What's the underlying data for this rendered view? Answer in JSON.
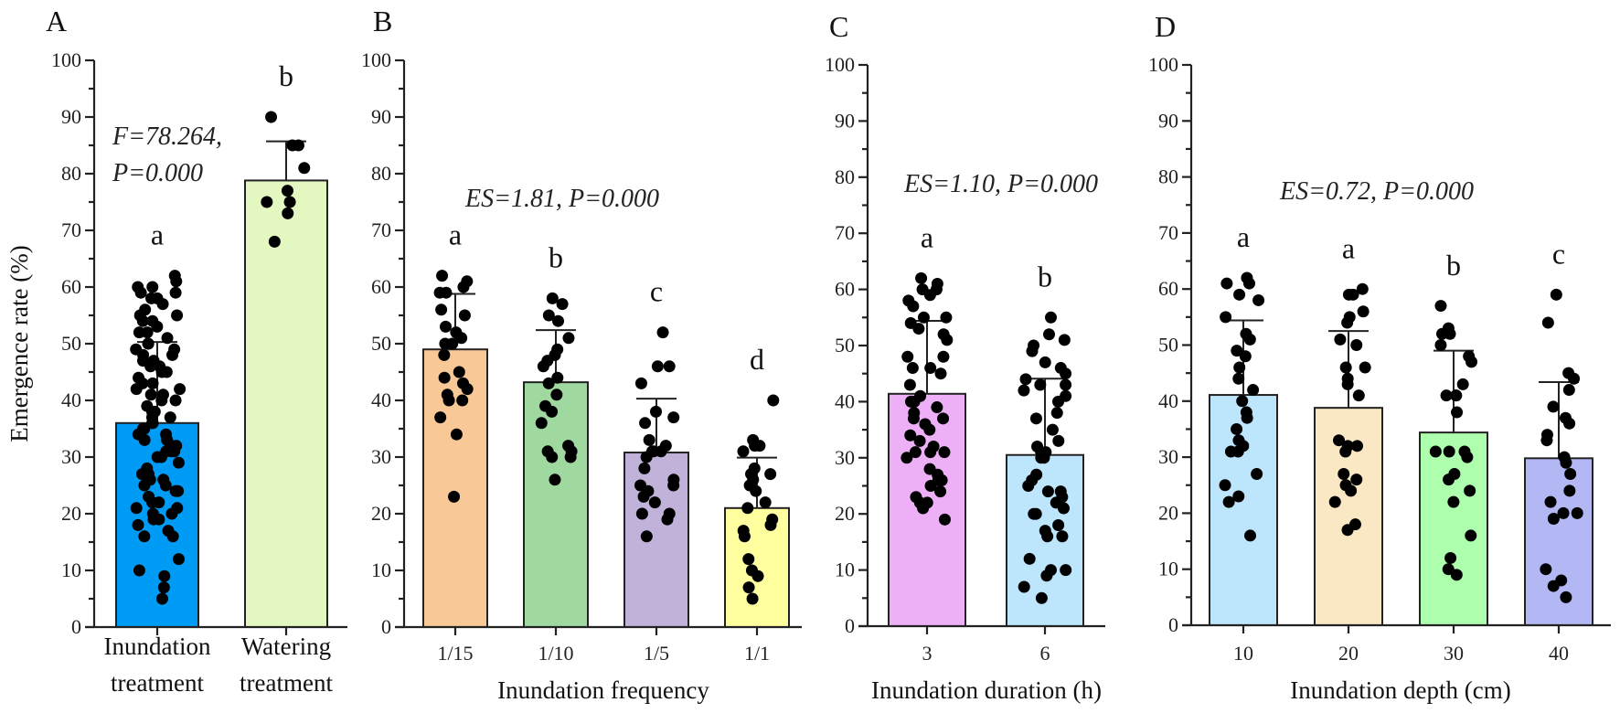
{
  "chart_data": [
    {
      "type": "bar",
      "panel": "A",
      "ylabel": "Emergence rate (%)",
      "xlabel": "",
      "ylim": [
        0,
        100
      ],
      "yticks": [
        "0",
        "10",
        "20",
        "30",
        "40",
        "50",
        "60",
        "70",
        "80",
        "90",
        "100"
      ],
      "stat_lines": [
        "F=78.264,",
        "P=0.000"
      ],
      "categories": [
        [
          "Inundation",
          "treatment"
        ],
        [
          "Watering",
          "treatment"
        ]
      ],
      "values": [
        36.0,
        78.8
      ],
      "error_upper": [
        50.3,
        85.7
      ],
      "letters": [
        "a",
        "b"
      ],
      "colors": [
        "#009BF5",
        "#E2F8C0"
      ],
      "points": [
        [
          62,
          61,
          60,
          60,
          59,
          59,
          58,
          58,
          57,
          56,
          55,
          55,
          54,
          54,
          53,
          52,
          52,
          51,
          50,
          50,
          49,
          49,
          48,
          48,
          47,
          47,
          46,
          46,
          45,
          45,
          44,
          43,
          43,
          42,
          42,
          41,
          41,
          40,
          40,
          39,
          38,
          38,
          37,
          37,
          36,
          36,
          35,
          35,
          34,
          34,
          33,
          33,
          32,
          32,
          31,
          31,
          31,
          30,
          30,
          29,
          28,
          27,
          27,
          26,
          26,
          25,
          25,
          24,
          24,
          23,
          22,
          22,
          21,
          21,
          20,
          20,
          19,
          19,
          18,
          17,
          16,
          16,
          12,
          10,
          9,
          7,
          5
        ],
        [
          90,
          85,
          85,
          81,
          77,
          75,
          75,
          73,
          68
        ]
      ]
    },
    {
      "type": "bar",
      "panel": "B",
      "xlabel": "Inundation frequency",
      "ylim": [
        0,
        100
      ],
      "yticks": [
        "0",
        "10",
        "20",
        "30",
        "40",
        "50",
        "60",
        "70",
        "80",
        "90",
        "100"
      ],
      "stat_lines": [
        "ES=1.81, P=0.000"
      ],
      "categories": [
        "1/15",
        "1/10",
        "1/5",
        "1/1"
      ],
      "values": [
        49.0,
        43.2,
        30.8,
        21.0
      ],
      "error_upper": [
        58.8,
        52.4,
        40.3,
        29.9
      ],
      "letters": [
        "a",
        "b",
        "c",
        "d"
      ],
      "colors": [
        "#F9C897",
        "#A0D9A0",
        "#C1B2D9",
        "#FFFFA0"
      ],
      "points": [
        [
          62,
          61,
          60,
          59,
          59,
          56,
          55,
          53,
          52,
          51,
          50,
          50,
          48,
          45,
          44,
          43,
          42,
          41,
          40,
          40,
          37,
          34,
          23
        ],
        [
          58,
          57,
          55,
          54,
          51,
          49,
          48,
          47,
          46,
          44,
          43,
          41,
          39,
          38,
          36,
          32,
          31,
          31,
          30,
          30,
          26
        ],
        [
          52,
          46,
          46,
          43,
          38,
          37,
          36,
          33,
          32,
          31,
          31,
          31,
          30,
          28,
          26,
          25,
          25,
          24,
          23,
          22,
          20,
          20,
          19,
          16
        ],
        [
          40,
          33,
          32,
          32,
          31,
          28,
          27,
          27,
          26,
          25,
          24,
          22,
          21,
          19,
          18,
          17,
          16,
          12,
          10,
          9,
          7,
          5
        ]
      ]
    },
    {
      "type": "bar",
      "panel": "C",
      "xlabel": "Inundation duration (h)",
      "ylim": [
        0,
        100
      ],
      "yticks": [
        "0",
        "10",
        "20",
        "30",
        "40",
        "50",
        "60",
        "70",
        "80",
        "90",
        "100"
      ],
      "stat_lines": [
        "ES=1.10, P=0.000"
      ],
      "categories": [
        "3",
        "6"
      ],
      "values": [
        41.4,
        30.5
      ],
      "error_upper": [
        54.4,
        44.1
      ],
      "letters": [
        "a",
        "b"
      ],
      "colors": [
        "#EDB0F6",
        "#BDE5FC"
      ],
      "points": [
        [
          62,
          61,
          60,
          60,
          59,
          58,
          57,
          55,
          55,
          54,
          53,
          52,
          51,
          48,
          48,
          46,
          46,
          45,
          43,
          41,
          40,
          40,
          39,
          38,
          37,
          37,
          36,
          35,
          34,
          33,
          32,
          31,
          31,
          31,
          30,
          28,
          27,
          26,
          26,
          25,
          24,
          23,
          22,
          22,
          21,
          19
        ],
        [
          55,
          52,
          51,
          50,
          49,
          47,
          46,
          45,
          44,
          43,
          43,
          42,
          41,
          40,
          38,
          37,
          35,
          33,
          32,
          31,
          31,
          30,
          30,
          27,
          26,
          25,
          24,
          24,
          23,
          22,
          21,
          20,
          20,
          18,
          17,
          16,
          16,
          12,
          10,
          10,
          9,
          7,
          5
        ]
      ]
    },
    {
      "type": "bar",
      "panel": "D",
      "xlabel": "Inundation depth (cm)",
      "ylim": [
        0,
        100
      ],
      "yticks": [
        "0",
        "10",
        "20",
        "30",
        "40",
        "50",
        "60",
        "70",
        "80",
        "90",
        "100"
      ],
      "stat_lines": [
        "ES=0.72, P=0.000"
      ],
      "categories": [
        "10",
        "20",
        "30",
        "40"
      ],
      "values": [
        41.1,
        38.8,
        34.4,
        29.8
      ],
      "error_upper": [
        54.4,
        52.5,
        49.0,
        43.4
      ],
      "letters": [
        "a",
        "a",
        "b",
        "c"
      ],
      "colors": [
        "#BDE5FC",
        "#FAE8C4",
        "#ADFFAD",
        "#B3B8F5"
      ],
      "points": [
        [
          62,
          61,
          61,
          59,
          58,
          55,
          52,
          51,
          49,
          48,
          46,
          44,
          42,
          40,
          38,
          37,
          35,
          33,
          32,
          31,
          31,
          27,
          25,
          23,
          22,
          16
        ],
        [
          60,
          59,
          59,
          56,
          55,
          54,
          51,
          50,
          46,
          46,
          44,
          43,
          41,
          33,
          32,
          32,
          31,
          27,
          26,
          25,
          24,
          22,
          18,
          17
        ],
        [
          57,
          53,
          52,
          52,
          50,
          48,
          47,
          43,
          41,
          41,
          41,
          38,
          31,
          31,
          31,
          30,
          27,
          26,
          24,
          22,
          16,
          12,
          10,
          9
        ],
        [
          59,
          54,
          45,
          44,
          42,
          39,
          37,
          36,
          34,
          33,
          30,
          29,
          27,
          24,
          22,
          20,
          20,
          19,
          10,
          8,
          7,
          5
        ]
      ]
    }
  ]
}
